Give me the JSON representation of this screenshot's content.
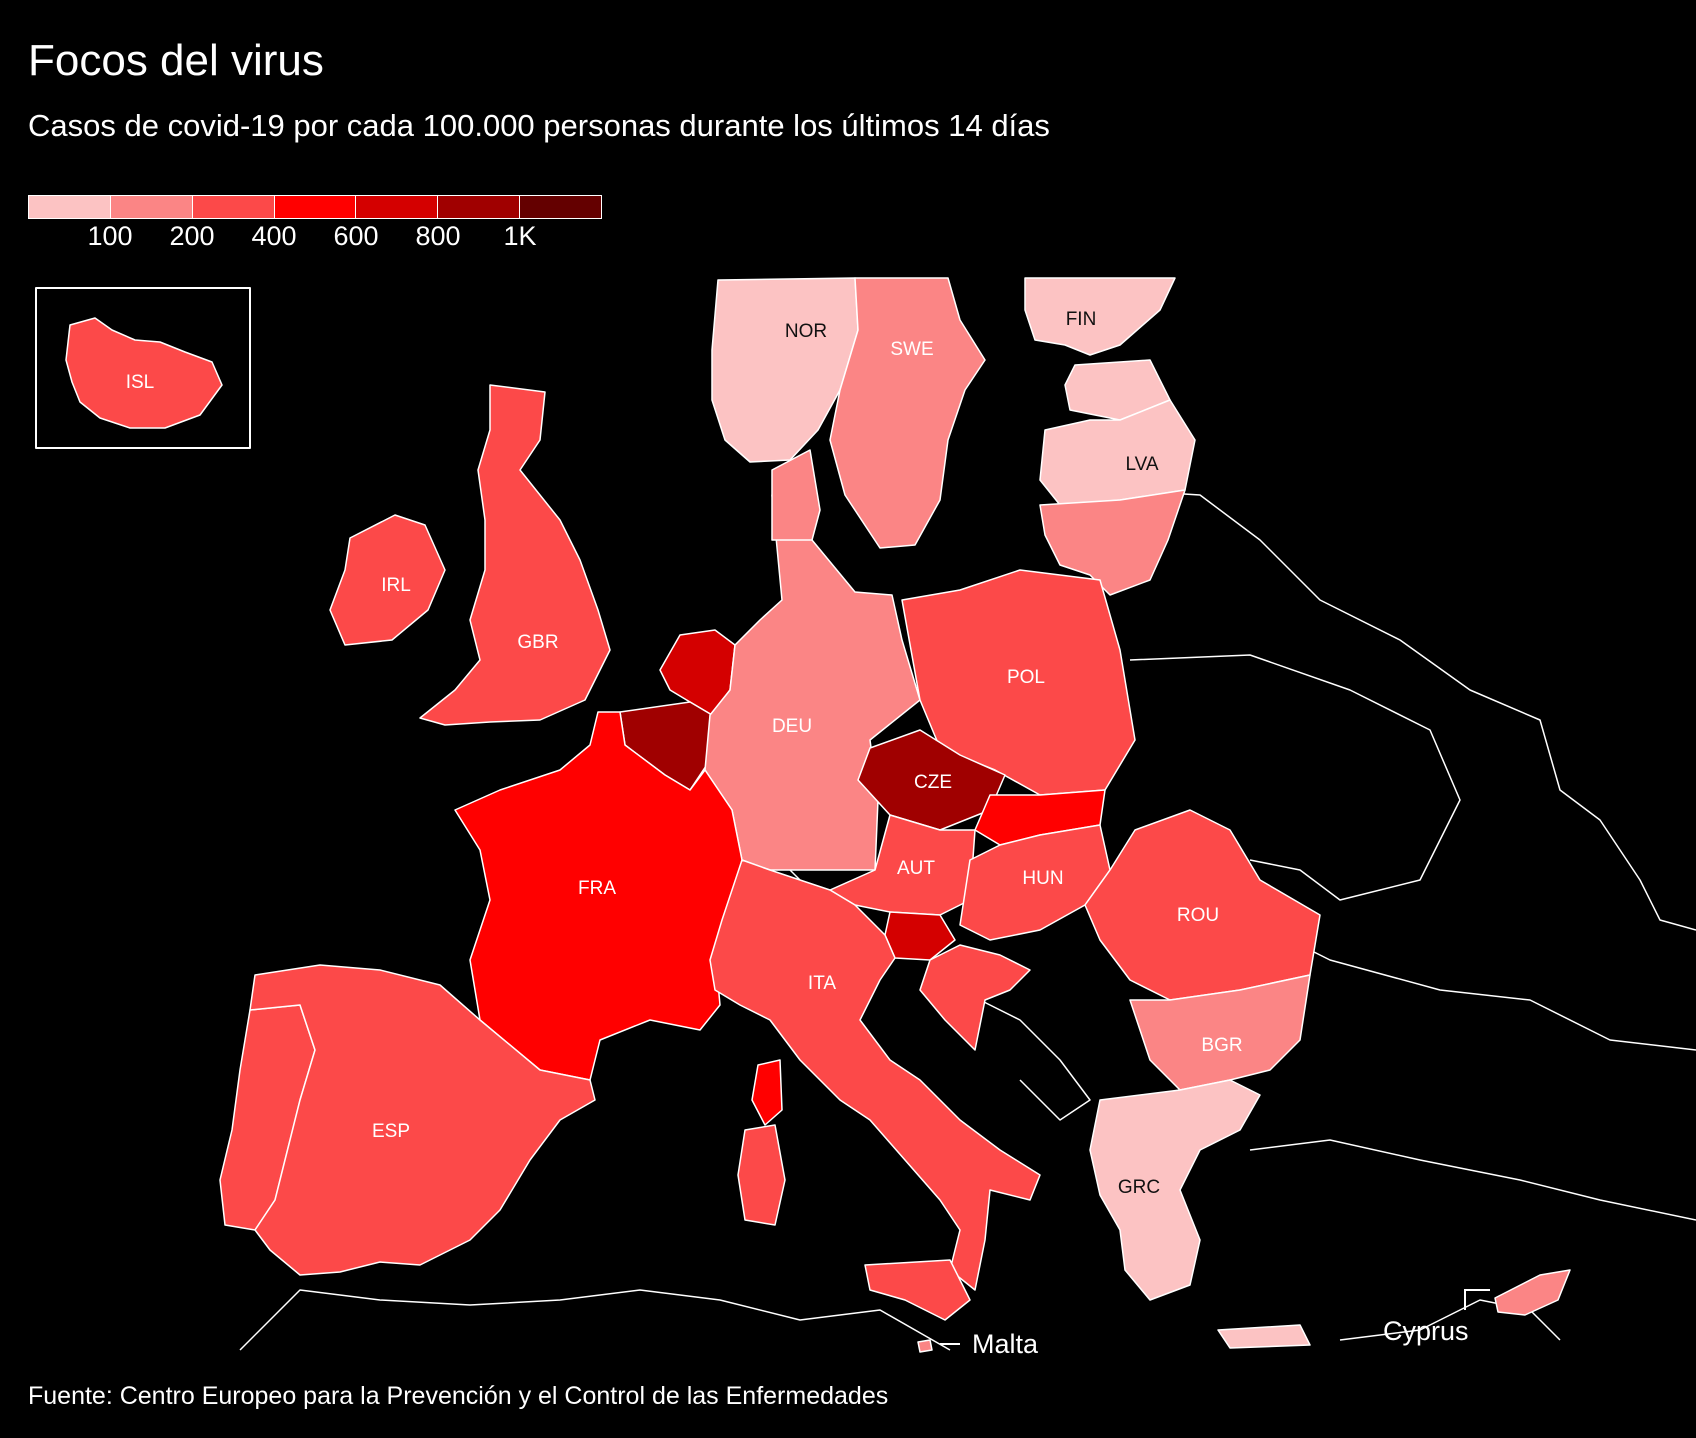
{
  "title": "Focos del virus",
  "subtitle": "Casos de covid-19 por cada 100.000 personas durante los últimos 14 días",
  "legend": {
    "colors": [
      "#fcc3c3",
      "#fb8585",
      "#fc4949",
      "#ff0000",
      "#d40000",
      "#a00000",
      "#640000"
    ],
    "ticks": [
      "100",
      "200",
      "400",
      "600",
      "800",
      "1K"
    ]
  },
  "countries": [
    {
      "code": "ISL",
      "bin": 2
    },
    {
      "code": "NOR",
      "bin": 0
    },
    {
      "code": "SWE",
      "bin": 1
    },
    {
      "code": "FIN",
      "bin": 0
    },
    {
      "code": "LVA",
      "bin": 0
    },
    {
      "code": "IRL",
      "bin": 2
    },
    {
      "code": "GBR",
      "bin": 2
    },
    {
      "code": "DEU",
      "bin": 1
    },
    {
      "code": "POL",
      "bin": 2
    },
    {
      "code": "CZE",
      "bin": 5
    },
    {
      "code": "FRA",
      "bin": 3
    },
    {
      "code": "AUT",
      "bin": 2
    },
    {
      "code": "HUN",
      "bin": 2
    },
    {
      "code": "ROU",
      "bin": 2
    },
    {
      "code": "ITA",
      "bin": 2
    },
    {
      "code": "BGR",
      "bin": 1
    },
    {
      "code": "ESP",
      "bin": 2
    },
    {
      "code": "GRC",
      "bin": 0
    }
  ],
  "callouts": {
    "malta": "Malta",
    "cyprus": "Cyprus"
  },
  "source": "Fuente: Centro Europeo para la Prevención y el Control de las Enfermedades"
}
